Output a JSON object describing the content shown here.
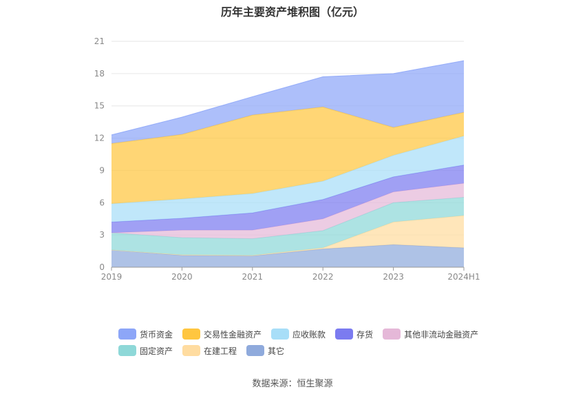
{
  "chart_data": {
    "type": "area",
    "stacked": true,
    "title": "历年主要资产堆积图（亿元）",
    "x": [
      "2019",
      "2020",
      "2021",
      "2022",
      "2023",
      "2024H1"
    ],
    "ylim": [
      0,
      21
    ],
    "yticks": [
      0,
      3,
      6,
      9,
      12,
      15,
      18,
      21
    ],
    "grid": true,
    "legend_position": "bottom",
    "series": [
      {
        "name": "其它",
        "color": "#8FAADC",
        "values": [
          1.6,
          1.1,
          1.05,
          1.7,
          2.1,
          1.8
        ]
      },
      {
        "name": "在建工程",
        "color": "#FFDCA0",
        "values": [
          0.0,
          0.05,
          0.05,
          0.1,
          2.1,
          3.0
        ]
      },
      {
        "name": "固定资产",
        "color": "#8ED8D8",
        "values": [
          1.6,
          1.6,
          1.55,
          1.6,
          1.8,
          1.7
        ]
      },
      {
        "name": "其他非流动金融资产",
        "color": "#E5B8D8",
        "values": [
          0.0,
          0.7,
          0.8,
          1.1,
          1.0,
          1.3
        ]
      },
      {
        "name": "存货",
        "color": "#7B7BF0",
        "values": [
          1.0,
          1.1,
          1.6,
          1.8,
          1.4,
          1.7
        ]
      },
      {
        "name": "应收账款",
        "color": "#A8DEF8",
        "values": [
          1.7,
          1.8,
          1.8,
          1.7,
          2.0,
          2.7
        ]
      },
      {
        "name": "交易性金融资产",
        "color": "#FFC640",
        "values": [
          5.6,
          6.0,
          7.3,
          6.9,
          2.6,
          2.2
        ]
      },
      {
        "name": "货币资金",
        "color": "#8DA6F8",
        "values": [
          0.8,
          1.6,
          1.7,
          2.8,
          5.0,
          4.8
        ]
      }
    ]
  },
  "legend_rows": [
    [
      "货币资金",
      "交易性金融资产",
      "应收账款",
      "存货",
      "其他非流动金融资产"
    ],
    [
      "固定资产",
      "在建工程",
      "其它"
    ]
  ],
  "source_text": "数据来源：恒生聚源"
}
